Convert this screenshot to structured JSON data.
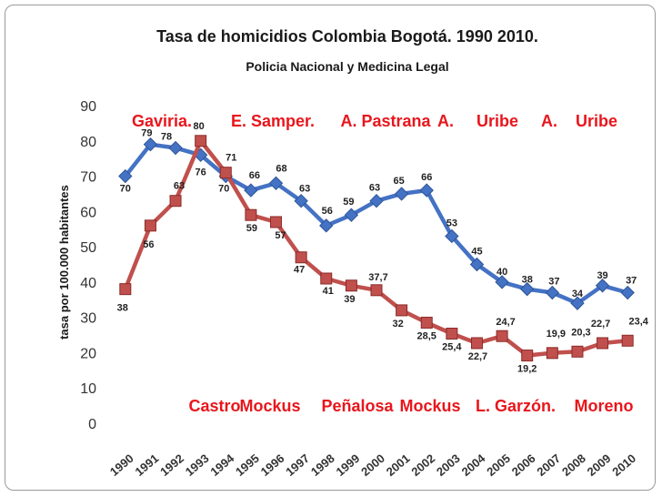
{
  "chart_data": {
    "type": "line",
    "title": "Tasa de homicidios Colombia Bogotá. 1990 2010.",
    "subtitle": "Policia Nacional y Medicina Legal",
    "ylabel": "tasa por 100.000 habitantes",
    "xlabel": "",
    "ylim": [
      0,
      90
    ],
    "yticks": [
      0,
      10,
      20,
      30,
      40,
      50,
      60,
      70,
      80,
      90
    ],
    "categories": [
      "1990",
      "1991",
      "1992",
      "1993",
      "1994",
      "1995",
      "1996",
      "1997",
      "1998",
      "1999",
      "2000",
      "2001",
      "2002",
      "2003",
      "2004",
      "2005",
      "2006",
      "2007",
      "2008",
      "2009",
      "2010"
    ],
    "series": [
      {
        "color": "#4472c4",
        "values": [
          70,
          79,
          78,
          76,
          70,
          66,
          68,
          63,
          56,
          59,
          63,
          65,
          66,
          53,
          45,
          40,
          38,
          37,
          34,
          39,
          37
        ],
        "labels": [
          "70",
          "79",
          "78",
          "76",
          "70",
          "66",
          "68",
          "63",
          "56",
          "59",
          "63",
          "65",
          "66",
          "53",
          "45",
          "40",
          "38",
          "37",
          "34",
          "39",
          "37"
        ]
      },
      {
        "color": "#c0504d",
        "values": [
          38,
          56,
          63,
          80,
          71,
          59,
          57,
          47,
          41,
          39,
          37.7,
          32,
          28.5,
          25.4,
          22.7,
          24.7,
          19.2,
          19.9,
          20.3,
          22.7,
          23.4
        ],
        "labels": [
          "38",
          "56",
          "63",
          "80",
          "71",
          "59",
          "57",
          "47",
          "41",
          "39",
          "37,7",
          "32",
          "28,5",
          "25,4",
          "22,7",
          "24,7",
          "19,2",
          "19,9",
          "20,3",
          "22,7",
          "23,4"
        ]
      }
    ],
    "annotations_top": [
      "Gaviria.",
      "E. Samper.",
      "A. Pastrana",
      "A.",
      "Uribe",
      "A.",
      "Uribe"
    ],
    "annotations_bottom": [
      "Castro",
      "Mockus",
      "Peñalosa",
      "Mockus",
      "L. Garzón.",
      "Moreno"
    ],
    "legend": "none",
    "grid": false
  }
}
